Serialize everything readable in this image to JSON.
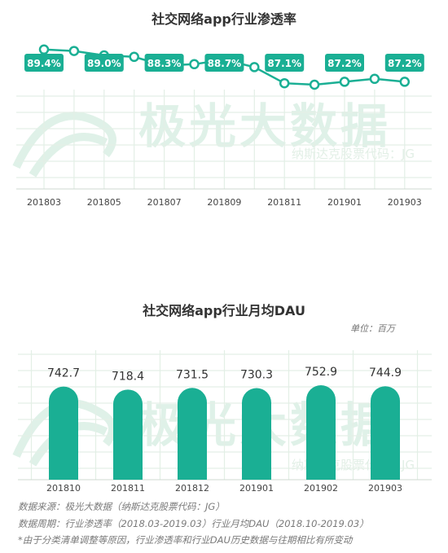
{
  "chart_data": [
    {
      "type": "line",
      "title": "社交网络app行业渗透率",
      "x": [
        "201803",
        "201804",
        "201805",
        "201806",
        "201807",
        "201808",
        "201809",
        "201810",
        "201811",
        "201812",
        "201901",
        "201902",
        "201903"
      ],
      "tick_labels": [
        "201803",
        "201805",
        "201807",
        "201809",
        "201811",
        "201901",
        "201903"
      ],
      "series": [
        {
          "values": [
            89.4,
            89.3,
            89.0,
            88.9,
            88.3,
            88.4,
            88.7,
            88.2,
            87.1,
            87.0,
            87.2,
            87.4,
            87.2
          ]
        }
      ],
      "data_labels": [
        {
          "x": "201803",
          "text": "89.4%"
        },
        {
          "x": "201805",
          "text": "89.0%"
        },
        {
          "x": "201807",
          "text": "88.3%"
        },
        {
          "x": "201809",
          "text": "88.7%"
        },
        {
          "x": "201811",
          "text": "87.1%"
        },
        {
          "x": "201901",
          "text": "87.2%"
        },
        {
          "x": "201903",
          "text": "87.2%"
        }
      ],
      "ylim": [
        80,
        90
      ],
      "grid": true
    },
    {
      "type": "bar",
      "title": "社交网络app行业月均DAU",
      "unit_label": "单位：百万",
      "categories": [
        "201810",
        "201811",
        "201812",
        "201901",
        "201902",
        "201903"
      ],
      "values": [
        742.7,
        718.4,
        731.5,
        730.3,
        752.9,
        744.9
      ],
      "ylim": [
        0,
        850
      ],
      "grid": true
    }
  ],
  "watermark": {
    "brand": "极光大数据",
    "stock": "纳斯达克股票代码：JG"
  },
  "footer": {
    "source": "数据来源：极光大数据（纳斯达克股票代码：JG）",
    "period": "数据周期：行业渗透率（2018.03-2019.03）行业月均DAU（2018.10-2019.03）",
    "disclaimer": "*由于分类清单调整等原因，行业渗透率和行业DAU历史数据与往期相比有所变动"
  },
  "colors": {
    "accent": "#1aaf94",
    "grid": "#e3efe6",
    "watermark": "#dff1e8"
  }
}
